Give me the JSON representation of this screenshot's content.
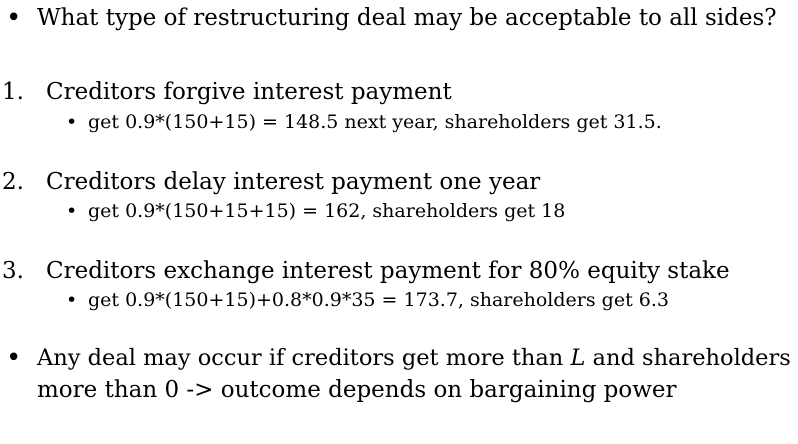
{
  "slide": {
    "intro": {
      "bullet": "•",
      "text": "What type of restructuring deal may be acceptable to all sides?"
    },
    "options": [
      {
        "number": "1.",
        "title": "Creditors forgive interest payment",
        "sub_bullet": "•",
        "detail": "get 0.9*(150+15) = 148.5 next year, shareholders get 31.5."
      },
      {
        "number": "2.",
        "title": "Creditors delay interest payment one year",
        "sub_bullet": "•",
        "detail": "get 0.9*(150+15+15) = 162, shareholders get 18"
      },
      {
        "number": "3.",
        "title": "Creditors exchange interest payment for 80% equity stake",
        "sub_bullet": "•",
        "detail": "get 0.9*(150+15)+0.8*0.9*35 = 173.7, shareholders get 6.3"
      }
    ],
    "conclusion": {
      "bullet": "•",
      "line1_before": "Any deal may occur if creditors get more than ",
      "line1_italic": "L",
      "line1_after": " and shareholders",
      "line2": "more than 0 -> outcome depends on bargaining power"
    }
  }
}
